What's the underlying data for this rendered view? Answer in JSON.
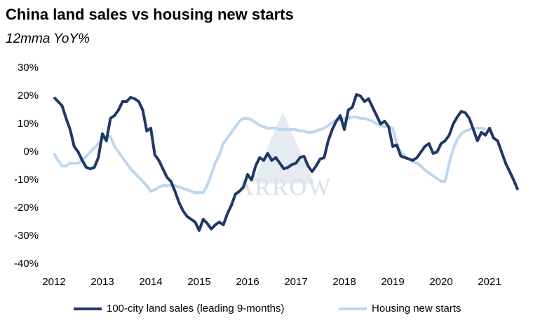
{
  "chart_data": {
    "type": "line",
    "title": "China land sales vs housing new starts",
    "subtitle": "12mma YoY%",
    "watermark": "ARROW",
    "categories": [
      "2012",
      null,
      null,
      null,
      null,
      null,
      null,
      null,
      null,
      null,
      null,
      null,
      "2013",
      null,
      null,
      null,
      null,
      null,
      null,
      null,
      null,
      null,
      null,
      null,
      "2014",
      null,
      null,
      null,
      null,
      null,
      null,
      null,
      null,
      null,
      null,
      null,
      "2015",
      null,
      null,
      null,
      null,
      null,
      null,
      null,
      null,
      null,
      null,
      null,
      "2016",
      null,
      null,
      null,
      null,
      null,
      null,
      null,
      null,
      null,
      null,
      null,
      "2017",
      null,
      null,
      null,
      null,
      null,
      null,
      null,
      null,
      null,
      null,
      null,
      "2018",
      null,
      null,
      null,
      null,
      null,
      null,
      null,
      null,
      null,
      null,
      null,
      "2019",
      null,
      null,
      null,
      null,
      null,
      null,
      null,
      null,
      null,
      null,
      null,
      "2020",
      null,
      null,
      null,
      null,
      null,
      null,
      null,
      null,
      null,
      null,
      null,
      "2021",
      null,
      null,
      null,
      null,
      null,
      null,
      null
    ],
    "series": [
      {
        "name": "100-city land sales (leading 9-months)",
        "color": "#1f3864",
        "values": [
          19.5,
          18,
          16.5,
          12,
          8,
          2,
          0,
          -3,
          -5.5,
          -6,
          -5.5,
          -2,
          6.5,
          4,
          12,
          13,
          15,
          18,
          18,
          19.5,
          19,
          18,
          15,
          7.5,
          8.5,
          -1,
          -3,
          -6,
          -9,
          -10.5,
          -14,
          -18,
          -21,
          -23,
          -24,
          -25,
          -28,
          -24,
          -25.5,
          -27.5,
          -26,
          -25,
          -26,
          -22,
          -19,
          -15,
          -14,
          -12.5,
          -8,
          -10,
          -5,
          -2,
          -3,
          -0.5,
          -3,
          -2,
          -4,
          -6,
          -5.5,
          -4.5,
          -4,
          -2,
          -1.5,
          -5,
          -7,
          -5,
          -2.5,
          -2,
          4,
          8,
          11,
          13,
          8,
          15,
          16,
          20.5,
          20,
          18,
          19,
          16,
          13,
          10,
          11,
          9,
          2,
          2.5,
          -1.5,
          -2,
          -2.5,
          -3,
          -2,
          0,
          2,
          3,
          -0.5,
          0,
          3,
          4,
          6,
          10,
          12.5,
          14.5,
          14,
          12,
          8,
          4,
          7,
          6,
          8.5,
          5,
          4,
          0,
          -4,
          -7,
          -10,
          -13.5
        ]
      },
      {
        "name": "Housing new starts",
        "color": "#bdd7ee",
        "values": [
          -0.5,
          -3,
          -5,
          -5,
          -4,
          -4,
          -4,
          -3,
          -1.5,
          0,
          1.5,
          3,
          4.5,
          5.5,
          5.5,
          2,
          0,
          -2,
          -4,
          -6,
          -7.5,
          -9,
          -10.5,
          -12,
          -14,
          -13.5,
          -12.5,
          -12,
          -12,
          -12,
          -12,
          -12.5,
          -13,
          -13.5,
          -14,
          -14.5,
          -14.5,
          -14.5,
          -12,
          -8,
          -4,
          -1,
          3,
          5,
          7,
          9,
          11,
          12,
          12,
          11.5,
          10.5,
          9.5,
          9,
          8.5,
          8.5,
          8.5,
          8,
          8,
          8,
          8,
          8,
          7.5,
          7.5,
          7,
          7,
          7.5,
          8,
          8.5,
          9.5,
          10.5,
          11.5,
          11.5,
          12,
          12,
          12.5,
          12.5,
          12,
          12,
          11.5,
          11,
          10,
          9.5,
          9,
          9,
          8.5,
          3,
          0,
          -1.5,
          -2.5,
          -3.5,
          -4,
          -5,
          -6.5,
          -7.5,
          -8.5,
          -9.5,
          -10.5,
          -10.5,
          -4,
          1,
          4.5,
          6.5,
          7.5,
          8,
          8.5,
          8.5,
          8.5,
          8,
          null,
          null,
          null,
          null,
          null,
          null,
          null,
          null
        ]
      }
    ],
    "ylim": [
      -40,
      30
    ],
    "yticks": [
      {
        "value": -40,
        "label": "-40%"
      },
      {
        "value": -30,
        "label": "-30%"
      },
      {
        "value": -20,
        "label": "-20%"
      },
      {
        "value": -10,
        "label": "-10%"
      },
      {
        "value": 0,
        "label": "0%"
      },
      {
        "value": 10,
        "label": "10%"
      },
      {
        "value": 20,
        "label": "20%"
      },
      {
        "value": 30,
        "label": "30%"
      }
    ],
    "legend": "bottom"
  }
}
